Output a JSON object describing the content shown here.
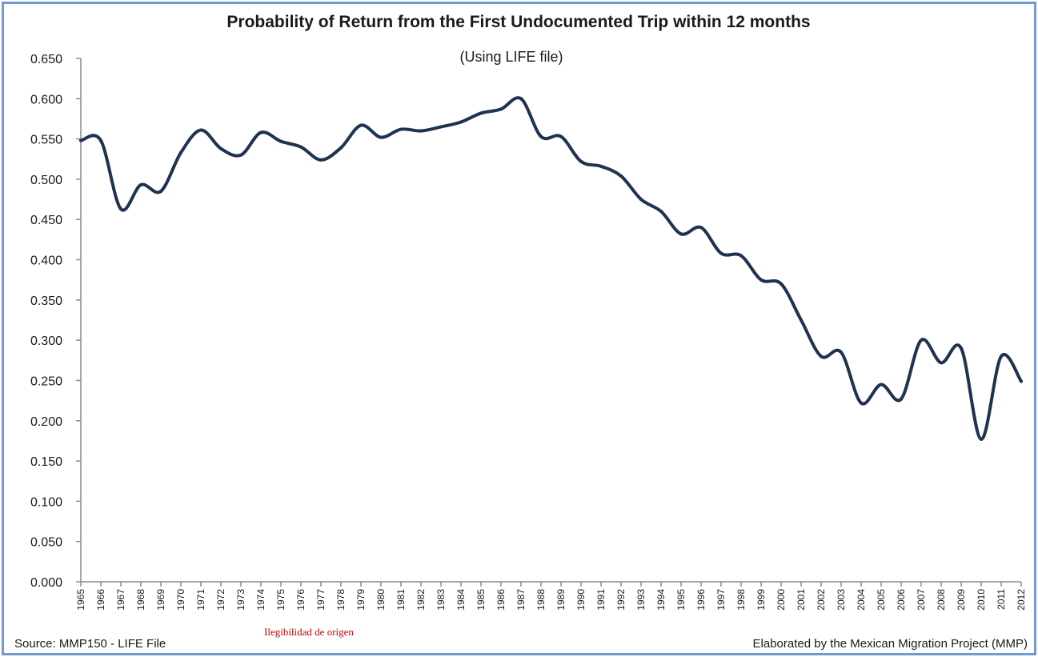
{
  "chart_data": {
    "type": "line",
    "title": "Probability  of Return from the First Undocumented Trip within 12 months",
    "subtitle": "(Using LIFE file)",
    "xlabel": "",
    "ylabel": "",
    "ylim": [
      0,
      0.65
    ],
    "yticks": [
      "0.000",
      "0.050",
      "0.100",
      "0.150",
      "0.200",
      "0.250",
      "0.300",
      "0.350",
      "0.400",
      "0.450",
      "0.500",
      "0.550",
      "0.600",
      "0.650"
    ],
    "categories": [
      "1965",
      "1966",
      "1967",
      "1968",
      "1969",
      "1970",
      "1971",
      "1972",
      "1973",
      "1974",
      "1975",
      "1976",
      "1977",
      "1978",
      "1979",
      "1980",
      "1981",
      "1982",
      "1983",
      "1984",
      "1985",
      "1986",
      "1987",
      "1988",
      "1989",
      "1990",
      "1991",
      "1992",
      "1993",
      "1994",
      "1995",
      "1996",
      "1997",
      "1998",
      "1999",
      "2000",
      "2001",
      "2002",
      "2003",
      "2004",
      "2005",
      "2006",
      "2007",
      "2008",
      "2009",
      "2010",
      "2011",
      "2012"
    ],
    "series": [
      {
        "name": "Probability of Return",
        "color": "#1f3350",
        "values": [
          0.548,
          0.548,
          0.463,
          0.493,
          0.485,
          0.533,
          0.561,
          0.538,
          0.53,
          0.558,
          0.547,
          0.54,
          0.524,
          0.539,
          0.567,
          0.552,
          0.562,
          0.56,
          0.565,
          0.571,
          0.582,
          0.587,
          0.6,
          0.553,
          0.553,
          0.522,
          0.516,
          0.504,
          0.475,
          0.46,
          0.432,
          0.44,
          0.408,
          0.405,
          0.375,
          0.37,
          0.325,
          0.28,
          0.285,
          0.222,
          0.245,
          0.227,
          0.3,
          0.272,
          0.29,
          0.177,
          0.28,
          0.249
        ]
      }
    ]
  },
  "footer": {
    "source": "Source: MMP150  - LIFE File",
    "note": "Ilegibilidad de origen",
    "credit": "Elaborated by the Mexican Migration Project (MMP)"
  }
}
